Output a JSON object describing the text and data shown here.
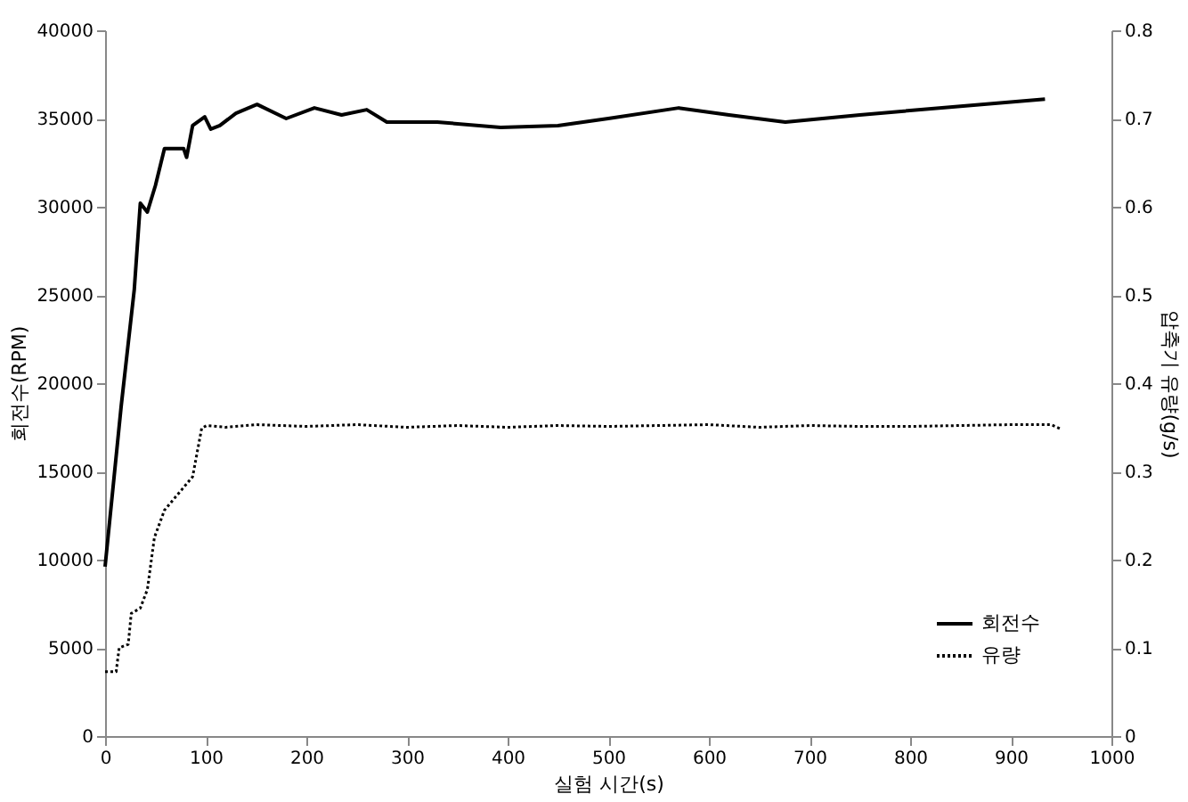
{
  "chart_data": {
    "type": "line",
    "xlabel": "실험 시간(s)",
    "ylabel": "회전수(RPM)",
    "y2label": "압축기 유량(g/s)",
    "xlim": [
      0,
      1000
    ],
    "xticks": [
      0,
      100,
      200,
      300,
      400,
      500,
      600,
      700,
      800,
      900,
      1000
    ],
    "ylim": [
      0,
      40000
    ],
    "yticks": [
      0,
      5000,
      10000,
      15000,
      20000,
      25000,
      30000,
      35000,
      40000
    ],
    "y2lim": [
      0,
      0.8
    ],
    "y2ticks": [
      0,
      0.1,
      0.2,
      0.3,
      0.4,
      0.5,
      0.6,
      0.7,
      0.8
    ],
    "grid": false,
    "legend": "bottom right",
    "marker": "none",
    "series": [
      {
        "name": "회전수",
        "color": "#000000",
        "line_style": "solid",
        "x": [
          0,
          16,
          29,
          35,
          42,
          50,
          59,
          78,
          81,
          87,
          99,
          105,
          114,
          130,
          151,
          180,
          208,
          235,
          260,
          280,
          330,
          393,
          450,
          500,
          570,
          620,
          676,
          750,
          850,
          934
        ],
        "values": [
          9600,
          18700,
          25300,
          30200,
          29700,
          31200,
          33300,
          33300,
          32800,
          34600,
          35100,
          34400,
          34600,
          35300,
          35800,
          35000,
          35600,
          35200,
          35500,
          34800,
          34800,
          34500,
          34600,
          35000,
          35600,
          35200,
          34800,
          35200,
          35700,
          36100
        ]
      },
      {
        "name": "유량",
        "color": "#000000",
        "line_style": "dotted",
        "axis": "y2",
        "x": [
          0,
          11,
          14,
          23,
          26,
          35,
          42,
          49,
          59,
          87,
          96,
          101,
          120,
          150,
          200,
          250,
          300,
          350,
          400,
          450,
          500,
          550,
          600,
          650,
          700,
          750,
          800,
          850,
          900,
          940,
          950
        ],
        "values": [
          0.073,
          0.073,
          0.1,
          0.104,
          0.139,
          0.145,
          0.166,
          0.225,
          0.256,
          0.294,
          0.349,
          0.352,
          0.35,
          0.353,
          0.351,
          0.353,
          0.35,
          0.352,
          0.35,
          0.352,
          0.351,
          0.352,
          0.353,
          0.35,
          0.352,
          0.351,
          0.351,
          0.352,
          0.353,
          0.353,
          0.348
        ]
      }
    ]
  }
}
